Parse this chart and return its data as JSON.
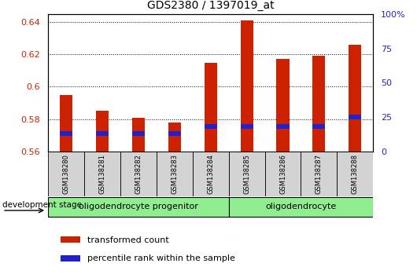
{
  "title": "GDS2380 / 1397019_at",
  "samples": [
    "GSM138280",
    "GSM138281",
    "GSM138282",
    "GSM138283",
    "GSM138284",
    "GSM138285",
    "GSM138286",
    "GSM138287",
    "GSM138288"
  ],
  "transformed_count": [
    0.595,
    0.585,
    0.581,
    0.578,
    0.615,
    0.641,
    0.617,
    0.619,
    0.626
  ],
  "percentile_rank_val": [
    0.5695,
    0.5695,
    0.5695,
    0.5695,
    0.574,
    0.574,
    0.574,
    0.574,
    0.58
  ],
  "percentile_bar_height": 0.003,
  "bar_bottom": 0.56,
  "ylim": [
    0.56,
    0.645
  ],
  "y2lim": [
    0,
    100
  ],
  "yticks": [
    0.56,
    0.58,
    0.6,
    0.62,
    0.64
  ],
  "ytick_labels": [
    "0.56",
    "0.58",
    "0.6",
    "0.62",
    "0.64"
  ],
  "y2ticks": [
    0,
    25,
    50,
    75,
    100
  ],
  "y2tick_labels": [
    "0",
    "25",
    "50",
    "75",
    "100%"
  ],
  "groups": [
    {
      "label": "oligodendrocyte progenitor",
      "indices": [
        0,
        1,
        2,
        3,
        4
      ]
    },
    {
      "label": "oligodendrocyte",
      "indices": [
        5,
        6,
        7,
        8
      ]
    }
  ],
  "group_color": "#90ee90",
  "group_label_prefix": "development stage",
  "bar_color": "#cc2200",
  "percentile_color": "#2222cc",
  "legend_items": [
    {
      "label": "transformed count",
      "color": "#cc2200"
    },
    {
      "label": "percentile rank within the sample",
      "color": "#2222cc"
    }
  ],
  "bar_width": 0.35,
  "tick_label_bg": "#d3d3d3",
  "tick_label_color_left": "#cc2200",
  "tick_label_color_right": "#2222cc",
  "fig_width": 5.3,
  "fig_height": 3.54,
  "dpi": 100
}
